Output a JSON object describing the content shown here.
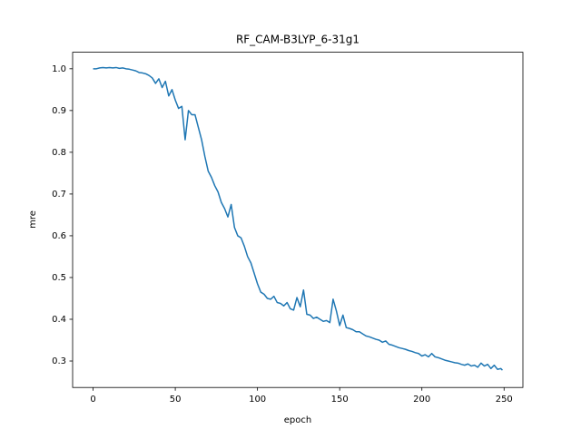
{
  "chart_data": {
    "type": "line",
    "title": "RF_CAM-B3LYP_6-31g1",
    "x_label": "epoch",
    "y_label": "mre",
    "color": "#1f77b4",
    "x": [
      0,
      2,
      4,
      6,
      8,
      10,
      12,
      14,
      16,
      18,
      20,
      22,
      24,
      26,
      28,
      30,
      32,
      34,
      36,
      38,
      40,
      42,
      44,
      46,
      48,
      50,
      52,
      54,
      56,
      58,
      60,
      62,
      64,
      66,
      68,
      70,
      72,
      74,
      76,
      78,
      80,
      82,
      84,
      86,
      88,
      90,
      92,
      94,
      96,
      98,
      100,
      102,
      104,
      106,
      108,
      110,
      112,
      114,
      116,
      118,
      120,
      122,
      124,
      126,
      128,
      130,
      132,
      134,
      136,
      138,
      140,
      142,
      144,
      146,
      148,
      150,
      152,
      154,
      156,
      158,
      160,
      162,
      164,
      166,
      168,
      170,
      172,
      174,
      176,
      178,
      180,
      182,
      184,
      186,
      188,
      190,
      192,
      194,
      196,
      198,
      200,
      202,
      204,
      206,
      208,
      210,
      212,
      214,
      216,
      218,
      220,
      222,
      224,
      226,
      228,
      230,
      232,
      234,
      236,
      238,
      240,
      242,
      244,
      246,
      248,
      249
    ],
    "values": [
      1.0,
      1.0,
      1.002,
      1.003,
      1.002,
      1.003,
      1.002,
      1.003,
      1.001,
      1.002,
      1.0,
      0.999,
      0.997,
      0.995,
      0.991,
      0.99,
      0.988,
      0.984,
      0.978,
      0.965,
      0.976,
      0.955,
      0.97,
      0.935,
      0.95,
      0.925,
      0.905,
      0.91,
      0.83,
      0.9,
      0.89,
      0.89,
      0.86,
      0.83,
      0.79,
      0.755,
      0.74,
      0.72,
      0.705,
      0.68,
      0.665,
      0.645,
      0.675,
      0.62,
      0.6,
      0.595,
      0.575,
      0.55,
      0.535,
      0.51,
      0.485,
      0.465,
      0.46,
      0.45,
      0.448,
      0.455,
      0.44,
      0.438,
      0.432,
      0.44,
      0.425,
      0.422,
      0.452,
      0.43,
      0.47,
      0.412,
      0.41,
      0.402,
      0.405,
      0.4,
      0.395,
      0.397,
      0.392,
      0.448,
      0.42,
      0.385,
      0.41,
      0.38,
      0.378,
      0.375,
      0.37,
      0.37,
      0.365,
      0.36,
      0.358,
      0.355,
      0.352,
      0.35,
      0.345,
      0.348,
      0.34,
      0.338,
      0.335,
      0.332,
      0.33,
      0.328,
      0.325,
      0.323,
      0.32,
      0.318,
      0.312,
      0.315,
      0.31,
      0.318,
      0.31,
      0.308,
      0.305,
      0.302,
      0.3,
      0.298,
      0.296,
      0.295,
      0.292,
      0.29,
      0.293,
      0.288,
      0.29,
      0.285,
      0.295,
      0.288,
      0.292,
      0.282,
      0.29,
      0.28,
      0.282,
      0.278
    ],
    "xlim": [
      -12.45,
      261.45
    ],
    "ylim": [
      0.2366,
      1.0396
    ],
    "xticks": [
      0,
      50,
      100,
      150,
      200,
      250
    ],
    "yticks": [
      0.3,
      0.4,
      0.5,
      0.6,
      0.7,
      0.8,
      0.9,
      {
        "value": 1,
        "label": "1.0"
      }
    ]
  }
}
